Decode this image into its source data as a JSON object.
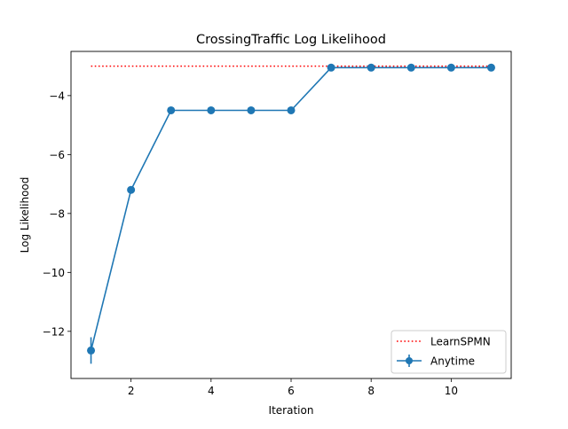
{
  "chart_data": {
    "type": "line",
    "title": "CrossingTraffic Log Likelihood",
    "xlabel": "Iteration",
    "ylabel": "Log Likelihood",
    "xlim": [
      0.5,
      11.5
    ],
    "ylim": [
      -13.6,
      -2.5
    ],
    "xticks": [
      2,
      4,
      6,
      8,
      10
    ],
    "yticks": [
      -12,
      -10,
      -8,
      -6,
      -4
    ],
    "grid": false,
    "legend": "lower-right",
    "series": [
      {
        "name": "LearnSPMN",
        "style": "dotted",
        "color": "#ff0000",
        "x": [
          1,
          11
        ],
        "y": [
          -3.0,
          -3.0
        ]
      },
      {
        "name": "Anytime",
        "style": "solid-markers",
        "color": "#1f77b4",
        "x": [
          1,
          2,
          3,
          4,
          5,
          6,
          7,
          8,
          9,
          10,
          11
        ],
        "y": [
          -12.65,
          -7.2,
          -4.5,
          -4.5,
          -4.5,
          -4.5,
          -3.05,
          -3.05,
          -3.05,
          -3.05,
          -3.05
        ],
        "yerr": [
          0.45,
          0,
          0,
          0,
          0,
          0,
          0,
          0,
          0,
          0,
          0
        ]
      }
    ]
  }
}
